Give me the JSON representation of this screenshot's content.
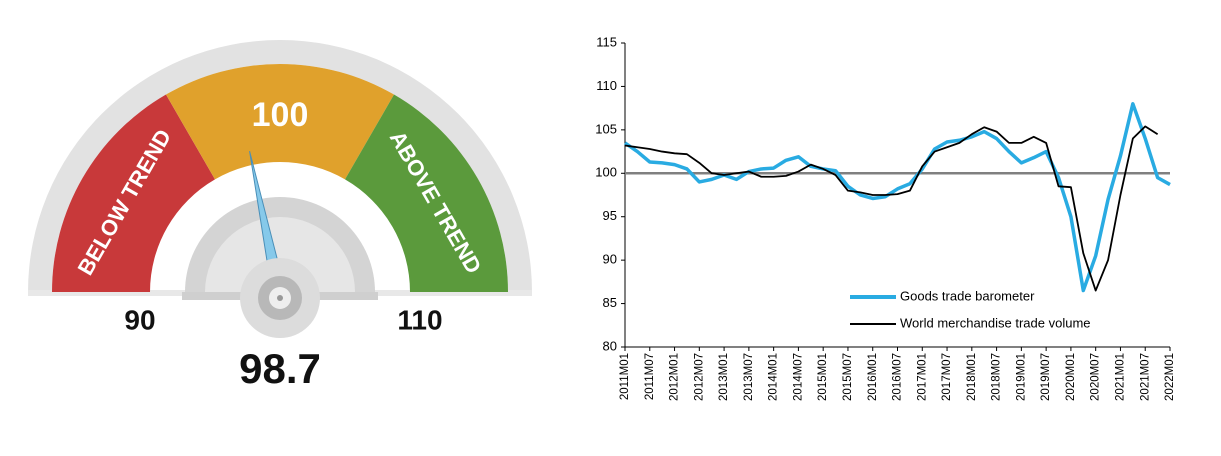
{
  "chart_data": [
    {
      "type": "gauge",
      "value": 98.7,
      "range": [
        90,
        110
      ],
      "ticks": [
        90,
        100,
        110
      ],
      "bands": [
        {
          "label": "BELOW TREND",
          "color": "#c8393a"
        },
        {
          "color": "#e0a12c"
        },
        {
          "label": "ABOVE TREND",
          "color": "#5b9a3c"
        }
      ],
      "needle_color": "#86c9ea"
    },
    {
      "type": "line",
      "categories": [
        "2011M01",
        null,
        "2011M07",
        null,
        "2012M01",
        null,
        "2012M07",
        null,
        "2013M01",
        null,
        "2013M07",
        null,
        "2014M01",
        null,
        "2014M07",
        null,
        "2015M01",
        null,
        "2015M07",
        null,
        "2016M01",
        null,
        "2016M07",
        null,
        "2017M01",
        null,
        "2017M07",
        null,
        "2018M01",
        null,
        "2018M07",
        null,
        "2019M01",
        null,
        "2019M07",
        null,
        "2020M01",
        null,
        "2020M07",
        null,
        "2021M01",
        null,
        "2021M07",
        null,
        "2022M01"
      ],
      "series": [
        {
          "name": "Goods trade barometer",
          "color": "#29abe2",
          "values": [
            103.5,
            102.5,
            101.3,
            101.2,
            101,
            100.5,
            99,
            99.3,
            99.8,
            99.3,
            100.2,
            100.5,
            100.6,
            101.5,
            101.9,
            100.8,
            100.5,
            100.3,
            98.5,
            97.5,
            97.1,
            97.3,
            98.2,
            98.8,
            100.5,
            102.8,
            103.6,
            103.8,
            104.2,
            104.8,
            104,
            102.5,
            101.2,
            101.8,
            102.5,
            99.5,
            95,
            86.5,
            90.5,
            97,
            102,
            108,
            104,
            99.5,
            98.7
          ]
        },
        {
          "name": "World merchandise trade volume",
          "color": "#000000",
          "values": [
            103.2,
            103,
            102.8,
            102.5,
            102.3,
            102.2,
            101.2,
            100,
            99.8,
            100,
            100.2,
            99.6,
            99.6,
            99.7,
            100.2,
            101,
            100.5,
            99.8,
            98,
            97.8,
            97.5,
            97.5,
            97.6,
            98,
            100.8,
            102.5,
            103,
            103.5,
            104.5,
            105.3,
            104.8,
            103.5,
            103.5,
            104.2,
            103.5,
            98.5,
            98.4,
            90.8,
            86.5,
            90,
            97.5,
            104,
            105.4,
            104.5,
            null
          ]
        }
      ],
      "reference_line": 100,
      "reference_color": "#808080",
      "ylim": [
        80,
        115
      ],
      "yticks": [
        80,
        85,
        90,
        95,
        100,
        105,
        110,
        115
      ],
      "grid": false,
      "legend": "lower right"
    }
  ]
}
